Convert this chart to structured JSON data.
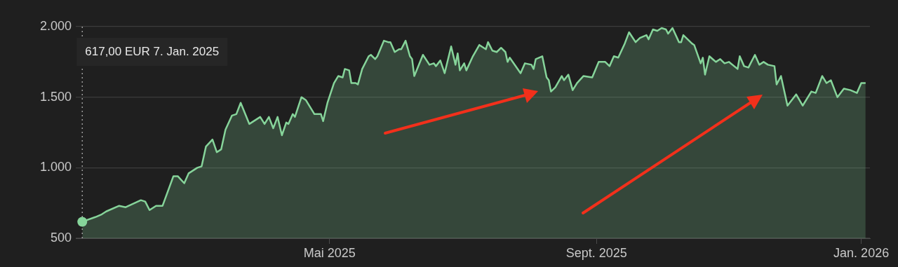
{
  "chart_data": {
    "type": "area",
    "x": [
      "2025-01-07",
      "2025-01-13",
      "2025-01-16",
      "2025-01-18",
      "2025-01-24",
      "2025-01-27",
      "2025-02-03",
      "2025-02-05",
      "2025-02-07",
      "2025-02-10",
      "2025-02-13",
      "2025-02-18",
      "2025-02-20",
      "2025-02-23",
      "2025-02-25",
      "2025-03-01",
      "2025-03-03",
      "2025-03-05",
      "2025-03-08",
      "2025-03-10",
      "2025-03-12",
      "2025-03-14",
      "2025-03-17",
      "2025-03-19",
      "2025-03-21",
      "2025-03-25",
      "2025-03-27",
      "2025-03-30",
      "2025-04-01",
      "2025-04-03",
      "2025-04-05",
      "2025-04-07",
      "2025-04-09",
      "2025-04-11",
      "2025-04-12",
      "2025-04-14",
      "2025-04-15",
      "2025-04-18",
      "2025-04-20",
      "2025-04-24",
      "2025-04-27",
      "2025-04-28",
      "2025-04-30",
      "2025-05-03",
      "2025-05-05",
      "2025-05-07",
      "2025-05-08",
      "2025-05-10",
      "2025-05-11",
      "2025-05-13",
      "2025-05-14",
      "2025-05-16",
      "2025-05-19",
      "2025-05-20",
      "2025-05-22",
      "2025-05-23",
      "2025-05-26",
      "2025-05-28",
      "2025-05-29",
      "2025-05-31",
      "2025-06-02",
      "2025-06-03",
      "2025-06-05",
      "2025-06-07",
      "2025-06-08",
      "2025-06-09",
      "2025-06-13",
      "2025-06-16",
      "2025-06-18",
      "2025-06-19",
      "2025-06-21",
      "2025-06-23",
      "2025-06-26",
      "2025-06-28",
      "2025-06-29",
      "2025-06-30",
      "2025-07-02",
      "2025-07-03",
      "2025-07-06",
      "2025-07-09",
      "2025-07-12",
      "2025-07-13",
      "2025-07-15",
      "2025-07-17",
      "2025-07-19",
      "2025-07-21",
      "2025-07-22",
      "2025-07-23",
      "2025-07-28",
      "2025-07-30",
      "2025-08-02",
      "2025-08-03",
      "2025-08-04",
      "2025-08-07",
      "2025-08-09",
      "2025-08-10",
      "2025-08-11",
      "2025-08-13",
      "2025-08-16",
      "2025-08-17",
      "2025-08-19",
      "2025-08-21",
      "2025-08-23",
      "2025-08-26",
      "2025-08-30",
      "2025-09-02",
      "2025-09-05",
      "2025-09-07",
      "2025-09-09",
      "2025-09-11",
      "2025-09-14",
      "2025-09-16",
      "2025-09-19",
      "2025-09-21",
      "2025-09-24",
      "2025-09-25",
      "2025-09-27",
      "2025-09-29",
      "2025-10-01",
      "2025-10-03",
      "2025-10-04",
      "2025-10-06",
      "2025-10-09",
      "2025-10-10",
      "2025-10-11",
      "2025-10-15",
      "2025-10-16",
      "2025-10-19",
      "2025-10-20",
      "2025-10-21",
      "2025-10-23",
      "2025-10-26",
      "2025-10-28",
      "2025-10-30",
      "2025-11-01",
      "2025-11-05",
      "2025-11-06",
      "2025-11-08",
      "2025-11-10",
      "2025-11-13",
      "2025-11-15",
      "2025-11-17",
      "2025-11-19",
      "2025-11-22",
      "2025-11-23",
      "2025-11-25",
      "2025-11-28",
      "2025-12-02",
      "2025-12-05",
      "2025-12-09",
      "2025-12-11",
      "2025-12-14",
      "2025-12-16",
      "2025-12-18",
      "2025-12-21",
      "2025-12-24",
      "2025-12-27",
      "2025-12-30",
      "2026-01-01",
      "2026-01-03"
    ],
    "series": [
      {
        "color": "#86d49a",
        "values": [
          617,
          650,
          670,
          690,
          730,
          720,
          770,
          760,
          700,
          730,
          730,
          940,
          940,
          890,
          960,
          1000,
          1010,
          1150,
          1200,
          1110,
          1130,
          1270,
          1370,
          1380,
          1460,
          1310,
          1330,
          1360,
          1310,
          1360,
          1280,
          1360,
          1230,
          1320,
          1310,
          1380,
          1360,
          1500,
          1480,
          1380,
          1380,
          1330,
          1460,
          1600,
          1650,
          1640,
          1700,
          1690,
          1600,
          1600,
          1590,
          1700,
          1790,
          1800,
          1770,
          1790,
          1900,
          1890,
          1890,
          1820,
          1840,
          1840,
          1900,
          1790,
          1770,
          1650,
          1800,
          1730,
          1740,
          1720,
          1760,
          1670,
          1860,
          1730,
          1810,
          1690,
          1740,
          1690,
          1790,
          1870,
          1840,
          1890,
          1830,
          1820,
          1850,
          1820,
          1750,
          1780,
          1670,
          1740,
          1730,
          1700,
          1770,
          1790,
          1640,
          1620,
          1540,
          1570,
          1650,
          1620,
          1660,
          1550,
          1600,
          1650,
          1640,
          1750,
          1750,
          1720,
          1790,
          1780,
          1880,
          1960,
          1890,
          1920,
          1940,
          1910,
          1980,
          1970,
          1990,
          1980,
          1950,
          1990,
          1890,
          1890,
          1940,
          1880,
          1870,
          1740,
          1780,
          1660,
          1790,
          1750,
          1770,
          1740,
          1750,
          1700,
          1790,
          1720,
          1710,
          1800,
          1730,
          1750,
          1730,
          1720,
          1590,
          1650,
          1440,
          1520,
          1440,
          1540,
          1530,
          1650,
          1600,
          1620,
          1500,
          1560,
          1550,
          1530,
          1600,
          1600
        ]
      }
    ],
    "xlim": [
      "2025-01-04",
      "2026-01-05"
    ],
    "xticks": [
      {
        "value": "2025-05-01",
        "label": "Mai 2025"
      },
      {
        "value": "2025-09-01",
        "label": "Sept. 2025"
      },
      {
        "value": "2026-01-01",
        "label": "Jan. 2026"
      }
    ],
    "ylim": [
      500,
      2000
    ],
    "yticks": [
      {
        "value": 500,
        "label": "500"
      },
      {
        "value": 1000,
        "label": "1.000"
      },
      {
        "value": 1500,
        "label": "1.500"
      },
      {
        "value": 2000,
        "label": "2.000"
      }
    ],
    "grid": "y",
    "legend": false,
    "ref_lines": [
      {
        "axis": "x",
        "value": "2025-01-07",
        "color": "#9a9a9a",
        "line_style": "dotted"
      }
    ],
    "annotations": [
      "617,00 EUR 7. Jan. 2025"
    ]
  }
}
